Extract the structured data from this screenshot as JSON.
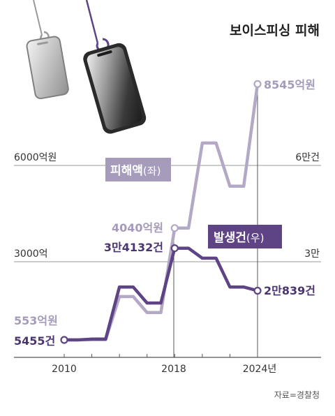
{
  "chart_data": {
    "type": "line",
    "title": "보이스피싱 피해",
    "source": "자료=경찰청",
    "x": [
      2010,
      2011,
      2012,
      2013,
      2014,
      2015,
      2016,
      2017,
      2018,
      2019,
      2020,
      2021,
      2022,
      2023,
      2024
    ],
    "x_tick_labels": [
      "2010",
      "2018",
      "2024년"
    ],
    "left_axis": {
      "labels": [
        "6000억원",
        "3000억"
      ],
      "values": [
        6000,
        3000
      ],
      "range": [
        0,
        10500
      ]
    },
    "right_axis": {
      "labels": [
        "6만건",
        "3만"
      ],
      "values": [
        60000,
        30000
      ],
      "range": [
        0,
        105000
      ]
    },
    "series": [
      {
        "name": "피해액",
        "name_suffix": "(좌)",
        "axis": "left",
        "unit": "억원",
        "color": "#b3a8c6",
        "values": [
          553,
          553,
          554,
          554,
          1900,
          1900,
          1400,
          1400,
          4040,
          4040,
          6700,
          6700,
          5350,
          5350,
          8545
        ],
        "labels": {
          "start": "553억원",
          "peak_2018": "4040억원",
          "end": "8545억원"
        }
      },
      {
        "name": "발생건",
        "name_suffix": "(우)",
        "axis": "right",
        "unit": "건",
        "color": "#5e4485",
        "values": [
          5455,
          5455,
          5709,
          5709,
          22000,
          22000,
          17000,
          17000,
          34132,
          34132,
          31000,
          31000,
          22000,
          22000,
          20839
        ],
        "labels": {
          "start": "5455건",
          "peak_2018": "3만4132건",
          "end": "2만839건"
        }
      }
    ]
  }
}
